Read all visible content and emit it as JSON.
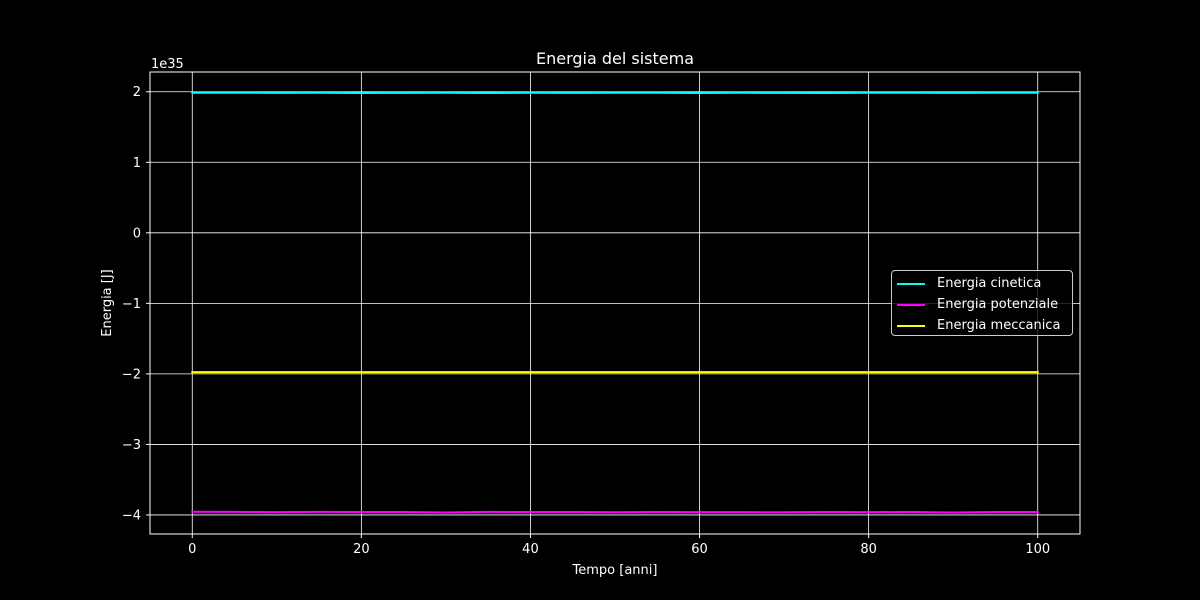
{
  "chart_data": {
    "type": "line",
    "title": "Energia del sistema",
    "xlabel": "Tempo [anni]",
    "ylabel": "Energia [J]",
    "offset_label": "1e35",
    "scale_exponent": 35,
    "xlim": [
      -5,
      105
    ],
    "ylim": [
      -4.27,
      2.28
    ],
    "x_ticks": [
      0,
      20,
      40,
      60,
      80,
      100
    ],
    "y_ticks": [
      -4,
      -3,
      -2,
      -1,
      0,
      1,
      2
    ],
    "y_tick_labels": [
      "−4",
      "−3",
      "−2",
      "−1",
      "0",
      "1",
      "2"
    ],
    "grid": true,
    "legend_position": "center-right",
    "x": [
      0,
      5,
      10,
      15,
      20,
      25,
      30,
      35,
      40,
      45,
      50,
      55,
      60,
      65,
      70,
      75,
      80,
      85,
      90,
      95,
      100
    ],
    "series": [
      {
        "name": "Energia cinetica",
        "color": "#00ffff",
        "values": [
          1.985,
          1.986,
          1.984,
          1.985,
          1.983,
          1.984,
          1.986,
          1.983,
          1.985,
          1.984,
          1.985,
          1.985,
          1.983,
          1.985,
          1.984,
          1.983,
          1.985,
          1.986,
          1.984,
          1.985,
          1.985
        ]
      },
      {
        "name": "Energia potenziale",
        "color": "#ff00ff",
        "values": [
          -3.955,
          -3.957,
          -3.96,
          -3.956,
          -3.958,
          -3.958,
          -3.965,
          -3.957,
          -3.958,
          -3.959,
          -3.962,
          -3.958,
          -3.96,
          -3.96,
          -3.962,
          -3.958,
          -3.96,
          -3.958,
          -3.966,
          -3.959,
          -3.958
        ]
      },
      {
        "name": "Energia meccanica",
        "color": "#ffff00",
        "values": [
          -1.975,
          -1.975,
          -1.975,
          -1.975,
          -1.975,
          -1.975,
          -1.975,
          -1.975,
          -1.975,
          -1.975,
          -1.975,
          -1.975,
          -1.975,
          -1.975,
          -1.975,
          -1.975,
          -1.975,
          -1.975,
          -1.975,
          -1.975,
          -1.975
        ]
      }
    ]
  }
}
